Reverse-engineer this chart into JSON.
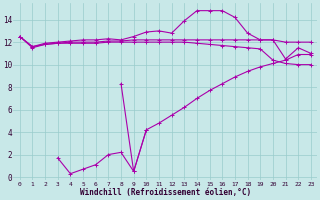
{
  "xlabel": "Windchill (Refroidissement éolien,°C)",
  "bg_color": "#c8e8e8",
  "line_color": "#aa00aa",
  "grid_color": "#99cccc",
  "xlim": [
    -0.5,
    23.5
  ],
  "ylim": [
    -0.3,
    15.5
  ],
  "xticks": [
    0,
    1,
    2,
    3,
    4,
    5,
    6,
    7,
    8,
    9,
    10,
    11,
    12,
    13,
    14,
    15,
    16,
    17,
    18,
    19,
    20,
    21,
    22,
    23
  ],
  "yticks": [
    0,
    2,
    4,
    6,
    8,
    10,
    12,
    14
  ],
  "line_upper_x": [
    0,
    1,
    2,
    3,
    4,
    5,
    6,
    7,
    8,
    9,
    10,
    11,
    12,
    13,
    14,
    15,
    16,
    17,
    18,
    19,
    20,
    21,
    22,
    23
  ],
  "line_upper_y": [
    12.5,
    11.6,
    11.9,
    12.0,
    12.1,
    12.2,
    12.2,
    12.3,
    12.2,
    12.5,
    12.9,
    13.0,
    12.8,
    13.9,
    14.8,
    14.8,
    14.8,
    14.2,
    12.8,
    12.2,
    12.2,
    10.5,
    11.5,
    11.0
  ],
  "line_mid_x": [
    0,
    1,
    2,
    3,
    4,
    5,
    6,
    7,
    8,
    9,
    10,
    11,
    12,
    13,
    14,
    15,
    16,
    17,
    18,
    19,
    20,
    21,
    22,
    23
  ],
  "line_mid_y": [
    12.5,
    11.6,
    11.8,
    11.9,
    12.0,
    12.0,
    12.0,
    12.1,
    12.1,
    12.2,
    12.2,
    12.2,
    12.2,
    12.2,
    12.2,
    12.2,
    12.2,
    12.2,
    12.2,
    12.2,
    12.2,
    12.0,
    12.0,
    12.0
  ],
  "line_low_x": [
    0,
    1,
    2,
    3,
    4,
    5,
    6,
    7,
    8,
    9,
    10,
    11,
    12,
    13,
    14,
    15,
    16,
    17,
    18,
    19,
    20,
    21,
    22,
    23
  ],
  "line_low_y": [
    12.5,
    11.5,
    11.8,
    11.9,
    11.9,
    11.9,
    11.9,
    12.0,
    12.0,
    12.0,
    12.0,
    12.0,
    12.0,
    12.0,
    11.9,
    11.8,
    11.7,
    11.6,
    11.5,
    11.4,
    10.4,
    10.1,
    10.0,
    10.0
  ],
  "line_jagged_x": [
    3,
    4,
    5,
    6,
    7,
    8,
    9,
    10
  ],
  "line_jagged_y": [
    1.7,
    0.3,
    0.7,
    1.1,
    2.0,
    2.2,
    0.5,
    4.2
  ],
  "line_diagonal_x": [
    8,
    9,
    10,
    11,
    12,
    13,
    14,
    15,
    16,
    17,
    18,
    19,
    20,
    21,
    22,
    23
  ],
  "line_diagonal_y": [
    8.3,
    0.5,
    4.2,
    4.8,
    5.5,
    6.2,
    7.0,
    7.7,
    8.3,
    8.9,
    9.4,
    9.8,
    10.1,
    10.4,
    10.9,
    10.9
  ]
}
